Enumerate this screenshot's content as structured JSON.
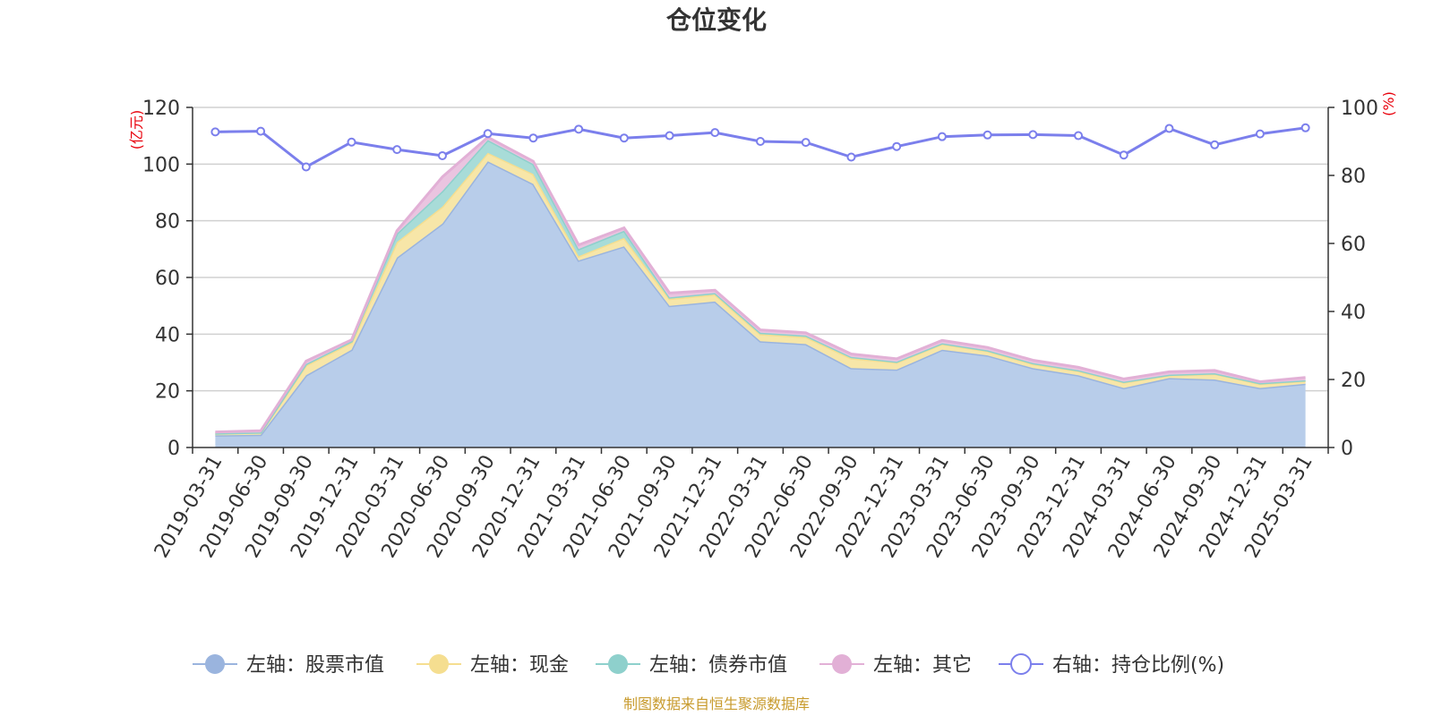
{
  "chart_data": {
    "type": "area",
    "title": "仓位变化",
    "left_axis": {
      "unit": "(亿元)",
      "ylim": [
        0,
        120
      ],
      "ticks": [
        0,
        20,
        40,
        60,
        80,
        100,
        120
      ]
    },
    "right_axis": {
      "unit": "(%)",
      "ylim": [
        0,
        100
      ],
      "ticks": [
        0,
        20,
        40,
        60,
        80,
        100
      ]
    },
    "categories": [
      "2019-03-31",
      "2019-06-30",
      "2019-09-30",
      "2019-12-31",
      "2020-03-31",
      "2020-06-30",
      "2020-09-30",
      "2020-12-31",
      "2021-03-31",
      "2021-06-30",
      "2021-09-30",
      "2021-12-31",
      "2022-03-31",
      "2022-06-30",
      "2022-09-30",
      "2022-12-31",
      "2023-03-31",
      "2023-06-30",
      "2023-09-30",
      "2023-12-31",
      "2024-03-31",
      "2024-06-30",
      "2024-09-30",
      "2024-12-31",
      "2025-03-31"
    ],
    "stacked": true,
    "series": [
      {
        "name": "左轴：股票市值",
        "axis": "left",
        "color": "#b8cdea",
        "stroke": "#9ab4de",
        "values": [
          4.3,
          4.5,
          25.5,
          34.5,
          67,
          79,
          101,
          93,
          66,
          71,
          50,
          51.5,
          37.5,
          36.5,
          28,
          27.5,
          34.5,
          32.5,
          28,
          25.5,
          21,
          24.5,
          24,
          21,
          22.5
        ]
      },
      {
        "name": "左轴：现金",
        "axis": "left",
        "color": "#f7e6a8",
        "stroke": "#f5de90",
        "values": [
          0.7,
          0.8,
          3.5,
          2.5,
          5.5,
          6,
          3,
          3.5,
          1.5,
          3,
          2.5,
          2.5,
          2.5,
          2.5,
          3.5,
          2.5,
          2,
          1.5,
          1.5,
          1.5,
          2,
          1,
          2,
          1.5,
          1
        ]
      },
      {
        "name": "左轴：债券市值",
        "axis": "left",
        "color": "#a8dcd8",
        "stroke": "#8ed0cc",
        "values": [
          0,
          0,
          0.5,
          0.5,
          3,
          5.5,
          4.5,
          3.5,
          2.5,
          2.5,
          0.5,
          0.5,
          0.5,
          0.5,
          0.5,
          0.3,
          0.3,
          0.3,
          0.3,
          0.3,
          0.2,
          0.2,
          0.2,
          0.2,
          0.2
        ]
      },
      {
        "name": "左轴：其它",
        "axis": "left",
        "color": "#eac4e0",
        "stroke": "#e2b0d6",
        "values": [
          0.5,
          0.6,
          1,
          0.5,
          1,
          5,
          1,
          1,
          1.5,
          1,
          1.5,
          1,
          1,
          1,
          1,
          1,
          1,
          1,
          1,
          1,
          1,
          1,
          1,
          0.5,
          1
        ]
      },
      {
        "name": "右轴：持仓比例(%)",
        "axis": "right",
        "color": "#7b7fec",
        "type": "line",
        "values": [
          92.8,
          93,
          82.5,
          89.8,
          87.6,
          85.8,
          92.3,
          91,
          93.6,
          91,
          91.7,
          92.6,
          90,
          89.7,
          85.4,
          88.5,
          91.4,
          91.9,
          92,
          91.7,
          86,
          93.8,
          89,
          92.2,
          94
        ]
      }
    ],
    "legend_position": "bottom",
    "grid": true
  },
  "footer": {
    "source": "制图数据来自恒生聚源数据库"
  }
}
